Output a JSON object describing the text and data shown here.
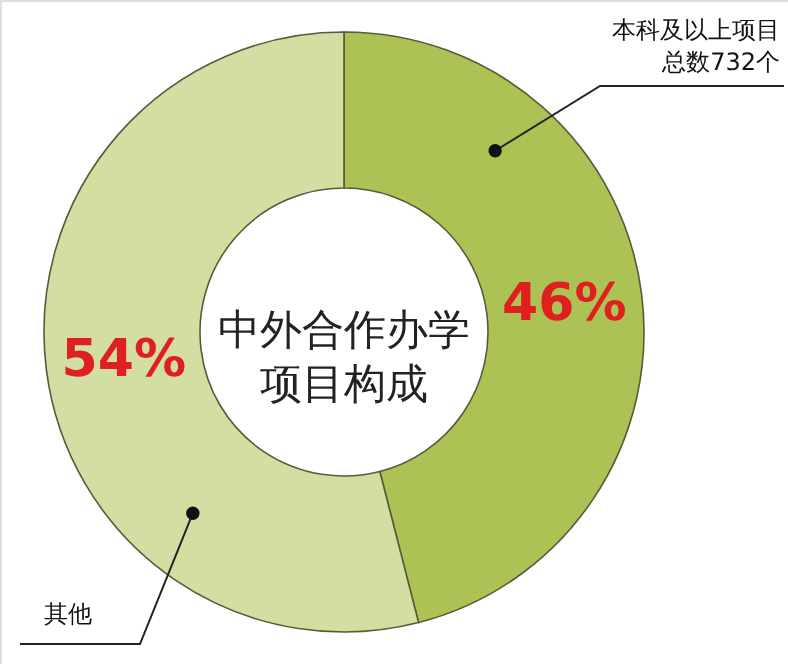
{
  "chart_data": {
    "type": "donut",
    "title": "中外合作办学项目构成",
    "categories": [
      "本科及以上项目总数732个",
      "其他"
    ],
    "values": [
      46,
      54
    ],
    "colors": [
      "#adc255",
      "#d3dfa2"
    ],
    "value_labels": [
      "46%",
      "54%"
    ]
  }
}
